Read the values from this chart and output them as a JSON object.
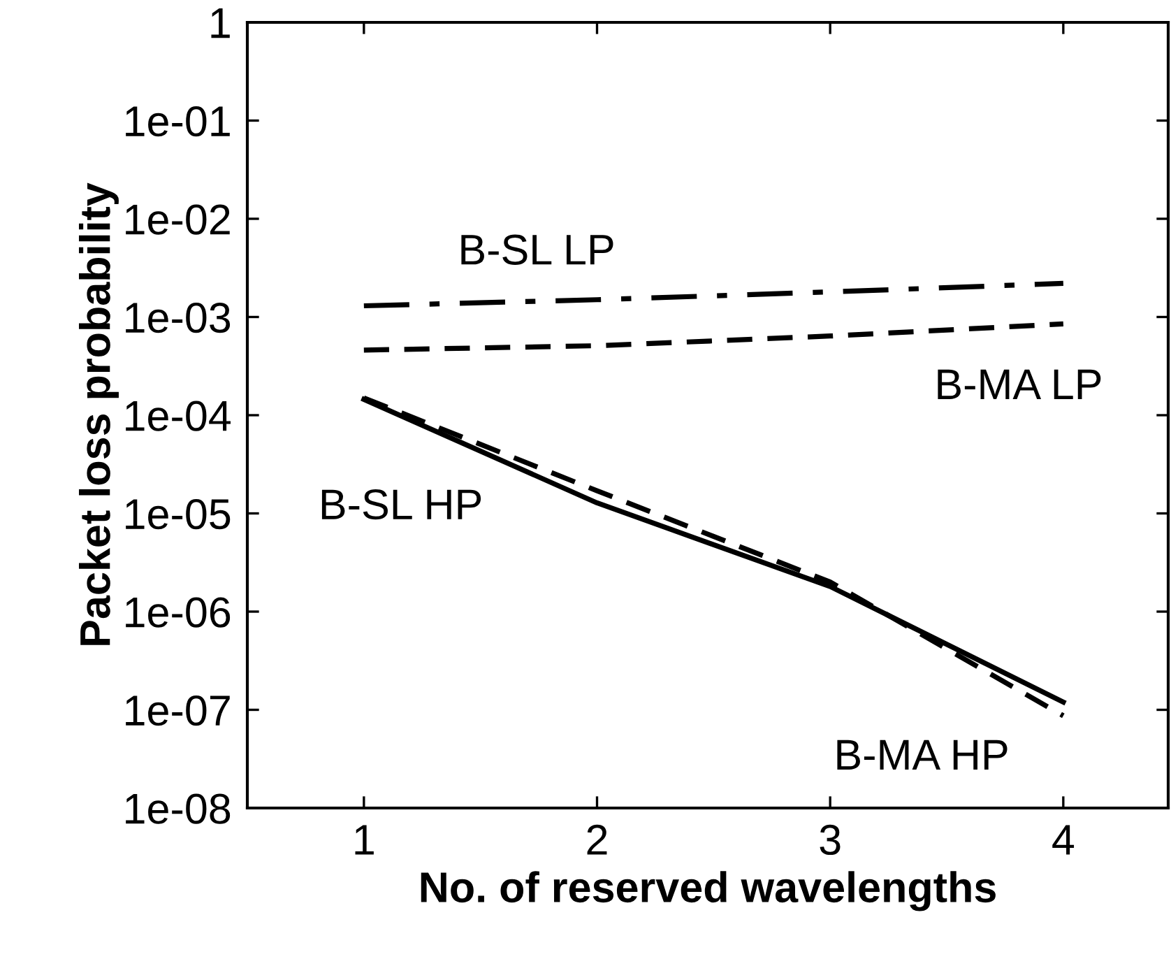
{
  "chart_data": {
    "type": "line",
    "xlabel": "No. of reserved wavelengths",
    "ylabel": "Packet loss probability",
    "x": [
      1,
      2,
      3,
      4
    ],
    "series": [
      {
        "name": "B-SL LP",
        "color": "#000000",
        "line_style": "dashdot",
        "values": [
          0.0013,
          0.0015,
          0.0018,
          0.0022
        ]
      },
      {
        "name": "B-MA LP",
        "color": "#000000",
        "line_style": "dashed",
        "values": [
          0.00046,
          0.00051,
          0.00064,
          0.00085
        ]
      },
      {
        "name": "B-SL HP",
        "color": "#000000",
        "line_style": "solid",
        "values": [
          0.000145,
          1.28e-05,
          1.8e-06,
          1.2e-07
        ]
      },
      {
        "name": "B-MA HP",
        "color": "#000000",
        "line_style": "dashed",
        "values": [
          0.00015,
          1.7e-05,
          2e-06,
          8.7e-08
        ]
      }
    ],
    "log": "y",
    "xlim": [
      0.5,
      4.45
    ],
    "ylim": [
      1e-08,
      1
    ],
    "xticks": [
      1,
      2,
      3,
      4
    ],
    "yticks": [
      {
        "value": 1e-08,
        "label": "1e-08"
      },
      {
        "value": 1e-07,
        "label": "1e-07"
      },
      {
        "value": 1e-06,
        "label": "1e-06"
      },
      {
        "value": 1e-05,
        "label": "1e-05"
      },
      {
        "value": 0.0001,
        "label": "1e-04"
      },
      {
        "value": 0.001,
        "label": "1e-03"
      },
      {
        "value": 0.01,
        "label": "1e-02"
      },
      {
        "value": 0.1,
        "label": "1e-01"
      },
      {
        "value": 1,
        "label": "1"
      }
    ],
    "grid": false,
    "legend": false
  }
}
